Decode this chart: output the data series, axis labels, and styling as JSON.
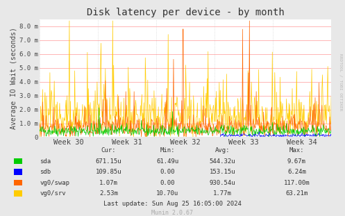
{
  "title": "Disk latency per device - by month",
  "ylabel": "Average IO Wait (seconds)",
  "xlabel_ticks": [
    "Week 30",
    "Week 31",
    "Week 32",
    "Week 33",
    "Week 34"
  ],
  "ylim_max": 0.0085,
  "yticks": [
    0.0,
    0.001,
    0.002,
    0.003,
    0.004,
    0.005,
    0.006,
    0.007,
    0.008
  ],
  "ytick_labels": [
    "0",
    "1.0 m",
    "2.0 m",
    "3.0 m",
    "4.0 m",
    "5.0 m",
    "6.0 m",
    "7.0 m",
    "8.0 m"
  ],
  "colors": {
    "sda": "#00cc00",
    "sdb": "#0000ff",
    "vg0swap": "#ff6600",
    "vg0srv": "#ffcc00"
  },
  "legend": [
    {
      "label": "sda",
      "color": "#00cc00",
      "cur": "671.15u",
      "min": "61.49u",
      "avg": "544.32u",
      "max": "9.67m"
    },
    {
      "label": "sdb",
      "color": "#0000ff",
      "cur": "109.85u",
      "min": "0.00",
      "avg": "153.15u",
      "max": "6.24m"
    },
    {
      "label": "vg0/swap",
      "color": "#ff6600",
      "cur": "1.07m",
      "min": "0.00",
      "avg": "930.54u",
      "max": "117.00m"
    },
    {
      "label": "vg0/srv",
      "color": "#ffcc00",
      "cur": "2.53m",
      "min": "10.70u",
      "avg": "1.77m",
      "max": "63.21m"
    }
  ],
  "background_color": "#e8e8e8",
  "plot_bg_color": "#ffffff",
  "grid_color_h": "#ffaaaa",
  "grid_color_v": "#cccccc",
  "watermark": "RRDTOOL / TOBI OETIKER",
  "last_update": "Last update: Sun Aug 25 16:05:00 2024",
  "munin_version": "Munin 2.0.67",
  "n_points": 600,
  "seed": 42
}
